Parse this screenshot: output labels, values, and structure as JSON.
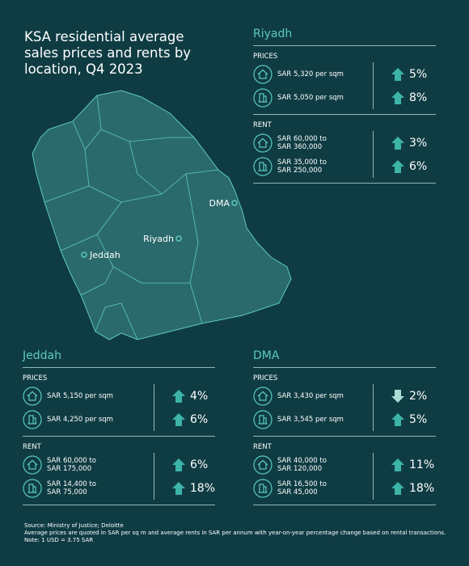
{
  "title": "KSA residential average sales prices and rents by location, Q4 2023",
  "map": {
    "labels": [
      "DMA",
      "Riyadh",
      "Jeddah"
    ]
  },
  "panels": [
    {
      "city": "Riyadh",
      "sections": [
        {
          "heading": "PRICES",
          "rows": [
            {
              "icon": "house",
              "lines": [
                "SAR 5,320 per sqm"
              ],
              "change": "5%",
              "trend": "up"
            },
            {
              "icon": "building",
              "lines": [
                "SAR 5,050 per sqm"
              ],
              "change": "8%",
              "trend": "up"
            }
          ]
        },
        {
          "heading": "RENT",
          "rows": [
            {
              "icon": "house",
              "lines": [
                "SAR 60,000 to",
                "SAR 360,000"
              ],
              "change": "3%",
              "trend": "up"
            },
            {
              "icon": "building",
              "lines": [
                "SAR 35,000 to",
                "SAR 250,000"
              ],
              "change": "6%",
              "trend": "up"
            }
          ]
        }
      ]
    },
    {
      "city": "Jeddah",
      "sections": [
        {
          "heading": "PRICES",
          "rows": [
            {
              "icon": "house",
              "lines": [
                "SAR 5,150 per sqm"
              ],
              "change": "4%",
              "trend": "up"
            },
            {
              "icon": "building",
              "lines": [
                "SAR 4,250 per sqm"
              ],
              "change": "6%",
              "trend": "up"
            }
          ]
        },
        {
          "heading": "RENT",
          "rows": [
            {
              "icon": "house",
              "lines": [
                "SAR 60,000 to",
                "SAR 175,000"
              ],
              "change": "6%",
              "trend": "up"
            },
            {
              "icon": "building",
              "lines": [
                "SAR 14,400 to",
                "SAR 75,000"
              ],
              "change": "18%",
              "trend": "up"
            }
          ]
        }
      ]
    },
    {
      "city": "DMA",
      "sections": [
        {
          "heading": "PRICES",
          "rows": [
            {
              "icon": "house",
              "lines": [
                "SAR 3,430 per sqm"
              ],
              "change": "2%",
              "trend": "down"
            },
            {
              "icon": "building",
              "lines": [
                "SAR 3,545 per sqm"
              ],
              "change": "5%",
              "trend": "up"
            }
          ]
        },
        {
          "heading": "RENT",
          "rows": [
            {
              "icon": "house",
              "lines": [
                "SAR 40,000 to",
                "SAR 120,000"
              ],
              "change": "11%",
              "trend": "up"
            },
            {
              "icon": "building",
              "lines": [
                "SAR 16,500 to",
                "SAR 45,000"
              ],
              "change": "18%",
              "trend": "up"
            }
          ]
        }
      ]
    }
  ],
  "footer": [
    "Source: Ministry of Justice; Deloitte",
    "Average prices are quoted in SAR per sq m and average rents in SAR per annum with year-on-year percentage change based on rental transactions.",
    "Note: 1 USD = 3.75 SAR"
  ]
}
